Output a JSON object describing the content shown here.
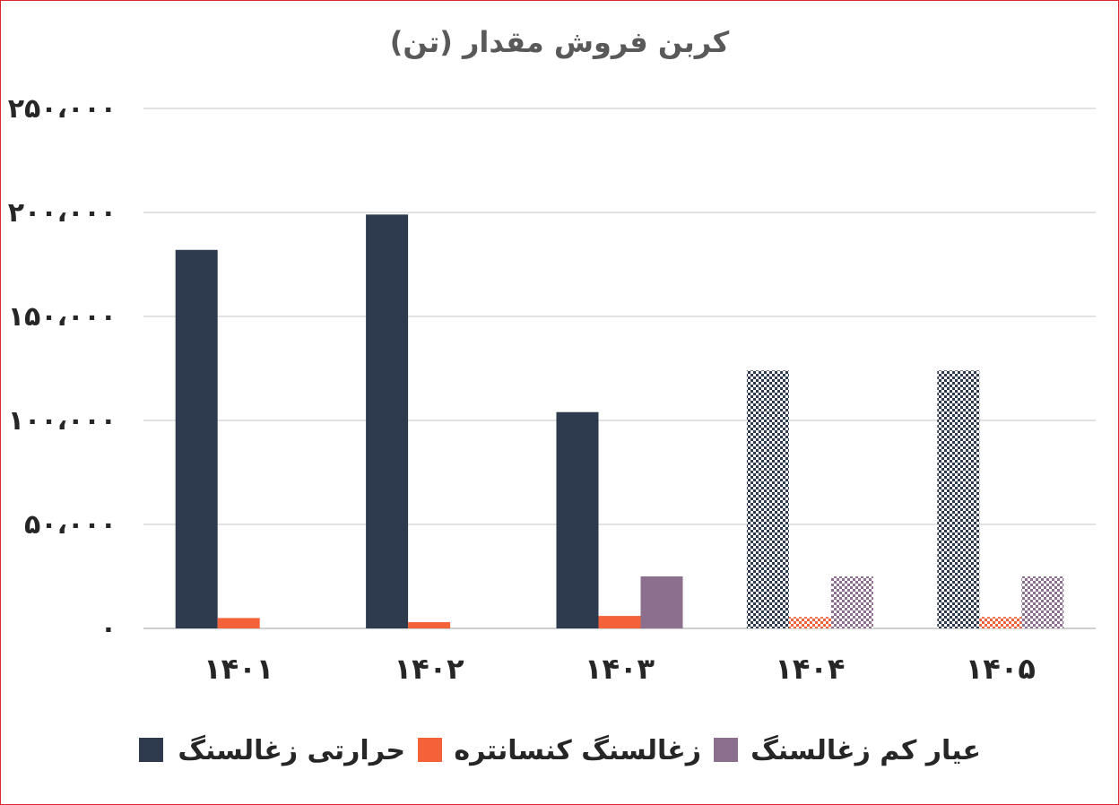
{
  "chart_data": {
    "type": "bar",
    "title": "(تن) کربن فروش مقدار",
    "categories": [
      "۱۴۰۱",
      "۱۴۰۲",
      "۱۴۰۳",
      "۱۴۰۴",
      "۱۴۰۵"
    ],
    "series": [
      {
        "name": "حرارتی زغالسنگ",
        "color": "#2e3b4e",
        "values": [
          182000,
          199000,
          104000,
          124000,
          124000
        ]
      },
      {
        "name": "زغالسنگ کنسانتره",
        "color": "#f4623a",
        "values": [
          5000,
          3000,
          6000,
          5500,
          5500
        ]
      },
      {
        "name": "عیار کم زغالسنگ",
        "color": "#8c6e8f",
        "values": [
          0,
          0,
          25000,
          25000,
          25000
        ]
      }
    ],
    "projected_categories": [
      "۱۴۰۴",
      "۱۴۰۵"
    ],
    "ylim": [
      0,
      250000
    ],
    "yticks": [
      0,
      50000,
      100000,
      150000,
      200000,
      250000
    ],
    "ytick_labels": [
      "۰",
      "۵۰،۰۰۰",
      "۱۰۰،۰۰۰",
      "۱۵۰،۰۰۰",
      "۲۰۰،۰۰۰",
      "۲۵۰،۰۰۰"
    ],
    "grid": true,
    "legend_position": "bottom",
    "xlabel": "",
    "ylabel": ""
  }
}
